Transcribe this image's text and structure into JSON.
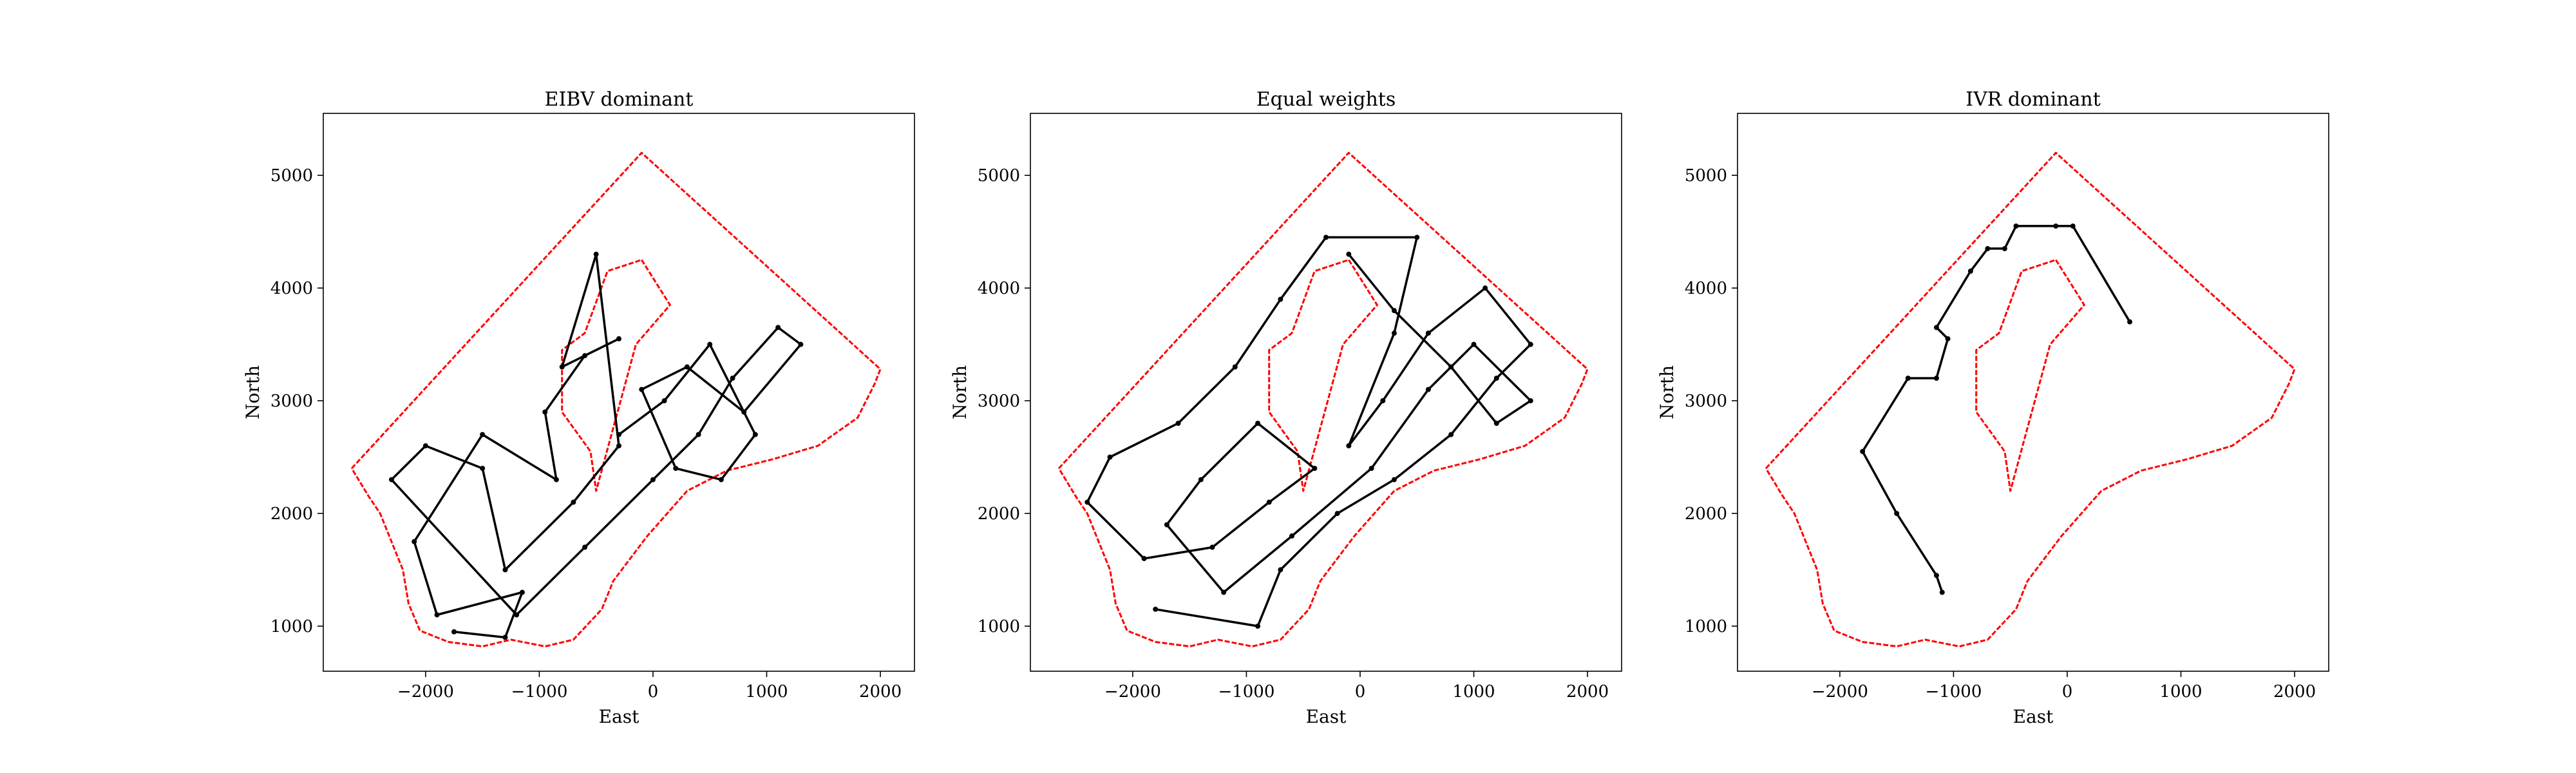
{
  "chart_data": [
    {
      "type": "line",
      "title": "EIBV dominant",
      "xlabel": "East",
      "ylabel": "North",
      "xlim": [
        -2900,
        2300
      ],
      "ylim": [
        600,
        5550
      ],
      "xticks": [
        -2000,
        -1000,
        0,
        1000,
        2000
      ],
      "yticks": [
        1000,
        2000,
        3000,
        4000,
        5000
      ],
      "grid": false,
      "series": [
        {
          "values": {
            "boundary": [
              [
                -2650,
                2400
              ],
              [
                -100,
                5200
              ],
              [
                2000,
                3280
              ],
              [
                1950,
                3150
              ],
              [
                1800,
                2850
              ],
              [
                1450,
                2600
              ],
              [
                1050,
                2480
              ],
              [
                650,
                2380
              ],
              [
                300,
                2200
              ],
              [
                -50,
                1800
              ],
              [
                -350,
                1400
              ],
              [
                -450,
                1150
              ],
              [
                -700,
                880
              ],
              [
                -950,
                820
              ],
              [
                -1250,
                880
              ],
              [
                -1500,
                820
              ],
              [
                -1800,
                860
              ],
              [
                -2050,
                960
              ],
              [
                -2150,
                1200
              ],
              [
                -2200,
                1500
              ],
              [
                -2300,
                1750
              ],
              [
                -2400,
                2000
              ],
              [
                -2500,
                2150
              ],
              [
                -2650,
                2400
              ]
            ],
            "obstacle": [
              [
                -100,
                4250
              ],
              [
                150,
                3850
              ],
              [
                -150,
                3500
              ],
              [
                -500,
                2200
              ],
              [
                -550,
                2550
              ],
              [
                -800,
                2900
              ],
              [
                -800,
                3450
              ],
              [
                -600,
                3600
              ],
              [
                -400,
                4150
              ],
              [
                -100,
                4250
              ]
            ]
          },
          "color": "#ff0000"
        },
        {
          "values": {
            "path": [
              [
                -1750,
                950
              ],
              [
                -1300,
                900
              ],
              [
                -1150,
                1300
              ],
              [
                -1900,
                1100
              ],
              [
                -2100,
                1750
              ],
              [
                -1500,
                2700
              ],
              [
                -850,
                2300
              ],
              [
                -950,
                2900
              ],
              [
                -600,
                3400
              ],
              [
                -300,
                3550
              ],
              [
                -800,
                3300
              ],
              [
                -500,
                4300
              ],
              [
                -300,
                2600
              ],
              [
                -700,
                2100
              ],
              [
                -1300,
                1500
              ],
              [
                -1500,
                2400
              ],
              [
                -2000,
                2600
              ],
              [
                -2300,
                2300
              ],
              [
                -1200,
                1100
              ],
              [
                -600,
                1700
              ],
              [
                0,
                2300
              ],
              [
                400,
                2700
              ],
              [
                700,
                3200
              ],
              [
                1100,
                3650
              ],
              [
                1300,
                3500
              ],
              [
                800,
                2900
              ],
              [
                300,
                3300
              ],
              [
                -100,
                3100
              ],
              [
                200,
                2400
              ],
              [
                600,
                2300
              ],
              [
                900,
                2700
              ],
              [
                500,
                3500
              ],
              [
                100,
                3000
              ],
              [
                -300,
                2700
              ]
            ]
          },
          "color": "#000000"
        }
      ]
    },
    {
      "type": "line",
      "title": "Equal weights",
      "xlabel": "East",
      "ylabel": "North",
      "xlim": [
        -2900,
        2300
      ],
      "ylim": [
        600,
        5550
      ],
      "xticks": [
        -2000,
        -1000,
        0,
        1000,
        2000
      ],
      "yticks": [
        1000,
        2000,
        3000,
        4000,
        5000
      ],
      "grid": false,
      "series": [
        {
          "values": {
            "boundary": [
              [
                -2650,
                2400
              ],
              [
                -100,
                5200
              ],
              [
                2000,
                3280
              ],
              [
                1950,
                3150
              ],
              [
                1800,
                2850
              ],
              [
                1450,
                2600
              ],
              [
                1050,
                2480
              ],
              [
                650,
                2380
              ],
              [
                300,
                2200
              ],
              [
                -50,
                1800
              ],
              [
                -350,
                1400
              ],
              [
                -450,
                1150
              ],
              [
                -700,
                880
              ],
              [
                -950,
                820
              ],
              [
                -1250,
                880
              ],
              [
                -1500,
                820
              ],
              [
                -1800,
                860
              ],
              [
                -2050,
                960
              ],
              [
                -2150,
                1200
              ],
              [
                -2200,
                1500
              ],
              [
                -2300,
                1750
              ],
              [
                -2400,
                2000
              ],
              [
                -2500,
                2150
              ],
              [
                -2650,
                2400
              ]
            ],
            "obstacle": [
              [
                -100,
                4250
              ],
              [
                150,
                3850
              ],
              [
                -150,
                3500
              ],
              [
                -500,
                2200
              ],
              [
                -550,
                2550
              ],
              [
                -800,
                2900
              ],
              [
                -800,
                3450
              ],
              [
                -600,
                3600
              ],
              [
                -400,
                4150
              ],
              [
                -100,
                4250
              ]
            ]
          },
          "color": "#ff0000"
        },
        {
          "values": {
            "path": [
              [
                -1800,
                1150
              ],
              [
                -900,
                1000
              ],
              [
                -700,
                1500
              ],
              [
                -200,
                2000
              ],
              [
                300,
                2300
              ],
              [
                800,
                2700
              ],
              [
                1200,
                3200
              ],
              [
                1500,
                3500
              ],
              [
                1100,
                4000
              ],
              [
                600,
                3600
              ],
              [
                200,
                3000
              ],
              [
                -100,
                2600
              ],
              [
                300,
                3600
              ],
              [
                500,
                4450
              ],
              [
                -300,
                4450
              ],
              [
                -700,
                3900
              ],
              [
                -1100,
                3300
              ],
              [
                -1600,
                2800
              ],
              [
                -2200,
                2500
              ],
              [
                -2400,
                2100
              ],
              [
                -1900,
                1600
              ],
              [
                -1300,
                1700
              ],
              [
                -800,
                2100
              ],
              [
                -400,
                2400
              ],
              [
                -900,
                2800
              ],
              [
                -1400,
                2300
              ],
              [
                -1700,
                1900
              ],
              [
                -1200,
                1300
              ],
              [
                -600,
                1800
              ],
              [
                100,
                2400
              ],
              [
                600,
                3100
              ],
              [
                1000,
                3500
              ],
              [
                1500,
                3000
              ],
              [
                1200,
                2800
              ],
              [
                800,
                3300
              ],
              [
                300,
                3800
              ],
              [
                -100,
                4300
              ]
            ]
          },
          "color": "#000000"
        }
      ]
    },
    {
      "type": "line",
      "title": "IVR dominant",
      "xlabel": "East",
      "ylabel": "North",
      "xlim": [
        -2900,
        2300
      ],
      "ylim": [
        600,
        5550
      ],
      "xticks": [
        -2000,
        -1000,
        0,
        1000,
        2000
      ],
      "yticks": [
        1000,
        2000,
        3000,
        4000,
        5000
      ],
      "grid": false,
      "series": [
        {
          "values": {
            "boundary": [
              [
                -2650,
                2400
              ],
              [
                -100,
                5200
              ],
              [
                2000,
                3280
              ],
              [
                1950,
                3150
              ],
              [
                1800,
                2850
              ],
              [
                1450,
                2600
              ],
              [
                1050,
                2480
              ],
              [
                650,
                2380
              ],
              [
                300,
                2200
              ],
              [
                -50,
                1800
              ],
              [
                -350,
                1400
              ],
              [
                -450,
                1150
              ],
              [
                -700,
                880
              ],
              [
                -950,
                820
              ],
              [
                -1250,
                880
              ],
              [
                -1500,
                820
              ],
              [
                -1800,
                860
              ],
              [
                -2050,
                960
              ],
              [
                -2150,
                1200
              ],
              [
                -2200,
                1500
              ],
              [
                -2300,
                1750
              ],
              [
                -2400,
                2000
              ],
              [
                -2500,
                2150
              ],
              [
                -2650,
                2400
              ]
            ],
            "obstacle": [
              [
                -100,
                4250
              ],
              [
                150,
                3850
              ],
              [
                -150,
                3500
              ],
              [
                -500,
                2200
              ],
              [
                -550,
                2550
              ],
              [
                -800,
                2900
              ],
              [
                -800,
                3450
              ],
              [
                -600,
                3600
              ],
              [
                -400,
                4150
              ],
              [
                -100,
                4250
              ]
            ]
          },
          "color": "#ff0000"
        },
        {
          "values": {
            "path": [
              [
                -1100,
                1300
              ],
              [
                -1150,
                1450
              ],
              [
                -1500,
                2000
              ],
              [
                -1800,
                2550
              ],
              [
                -1400,
                3200
              ],
              [
                -1150,
                3200
              ],
              [
                -1050,
                3550
              ],
              [
                -1150,
                3650
              ],
              [
                -850,
                4150
              ],
              [
                -700,
                4350
              ],
              [
                -550,
                4350
              ],
              [
                -450,
                4550
              ],
              [
                -100,
                4550
              ],
              [
                50,
                4550
              ],
              [
                550,
                3700
              ]
            ]
          },
          "color": "#000000"
        }
      ]
    }
  ]
}
